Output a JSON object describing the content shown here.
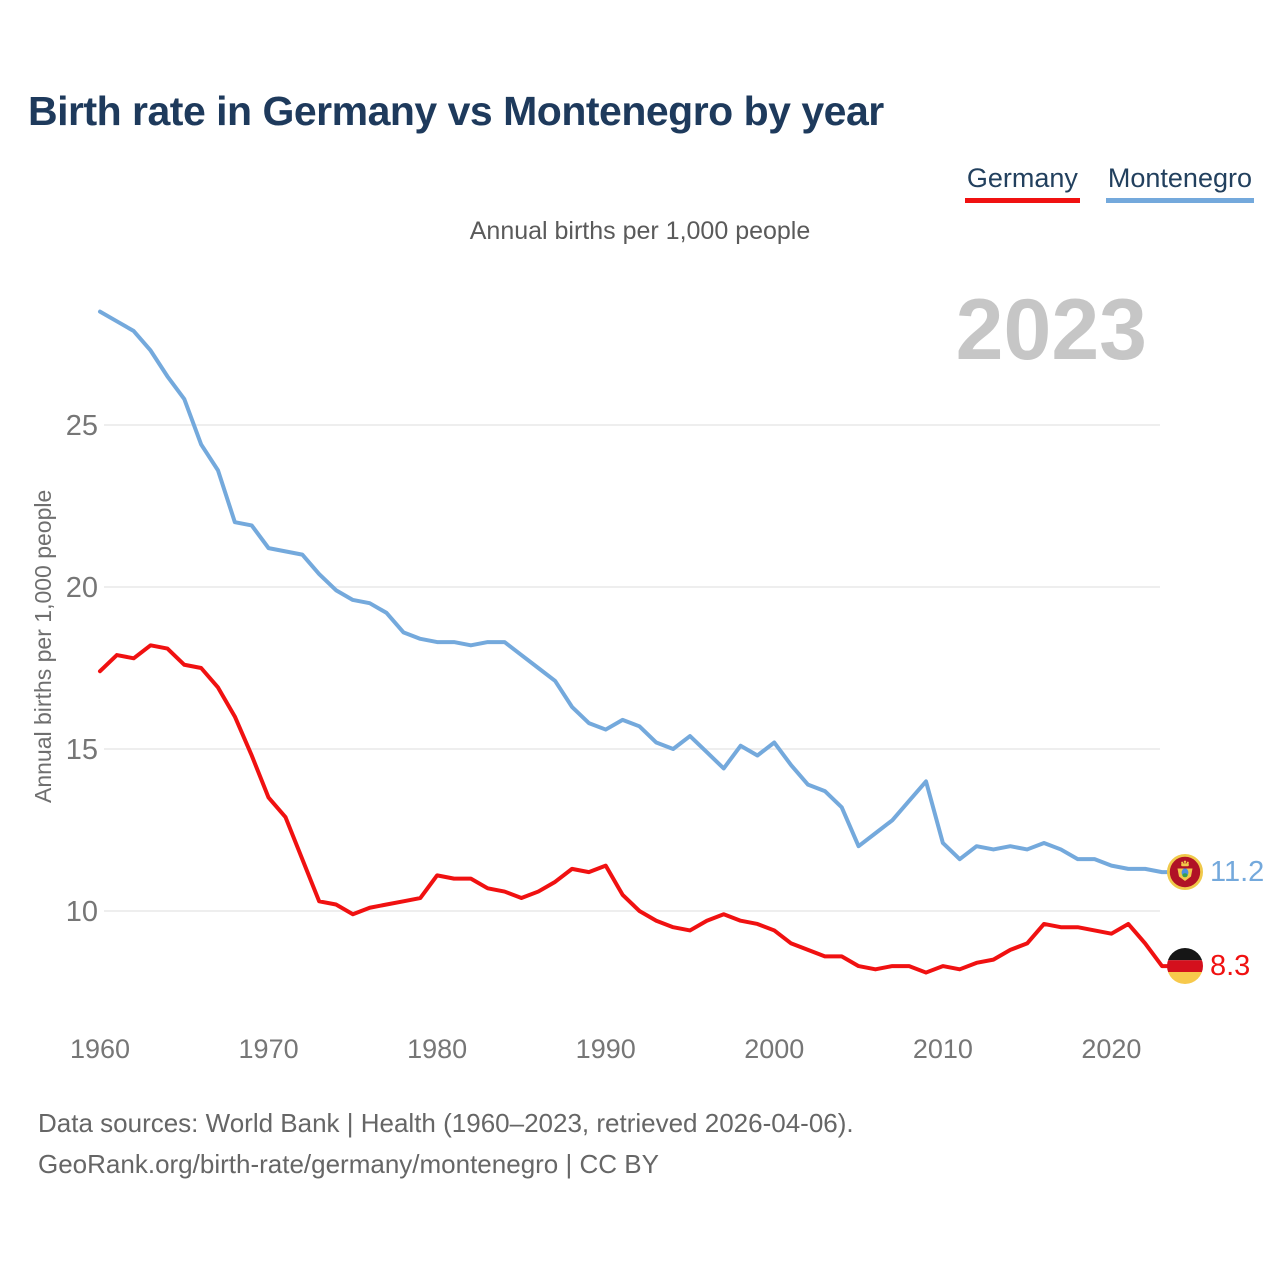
{
  "header": {
    "title": "Birth rate in Germany vs Montenegro by year",
    "subtitle": "Annual births per 1,000 people"
  },
  "legend": {
    "items": [
      {
        "label": "Germany",
        "color": "#f01111"
      },
      {
        "label": "Montenegro",
        "color": "#74a9dc"
      }
    ]
  },
  "watermark": {
    "year": "2023"
  },
  "axes": {
    "y_title": "Annual births per 1,000 people"
  },
  "end_labels": {
    "montenegro": "11.2",
    "germany": "8.3"
  },
  "footer": {
    "line1": "Data sources: World Bank | Health (1960–2023, retrieved 2026-04-06).",
    "line2": "GeoRank.org/birth-rate/germany/montenegro | CC BY"
  },
  "chart_data": {
    "type": "line",
    "title": "Birth rate in Germany vs Montenegro by year",
    "subtitle": "Annual births per 1,000 people",
    "xlabel": "",
    "ylabel": "Annual births per 1,000 people",
    "grid": "horizontal",
    "legend_position": "top-right",
    "xlim": [
      1960,
      2023
    ],
    "ylim": [
      7,
      29.5
    ],
    "x_ticks": [
      1960,
      1970,
      1980,
      1990,
      2000,
      2010,
      2020
    ],
    "y_ticks": [
      10,
      15,
      20,
      25
    ],
    "years": [
      1960,
      1961,
      1962,
      1963,
      1964,
      1965,
      1966,
      1967,
      1968,
      1969,
      1970,
      1971,
      1972,
      1973,
      1974,
      1975,
      1976,
      1977,
      1978,
      1979,
      1980,
      1981,
      1982,
      1983,
      1984,
      1985,
      1986,
      1987,
      1988,
      1989,
      1990,
      1991,
      1992,
      1993,
      1994,
      1995,
      1996,
      1997,
      1998,
      1999,
      2000,
      2001,
      2002,
      2003,
      2004,
      2005,
      2006,
      2007,
      2008,
      2009,
      2010,
      2011,
      2012,
      2013,
      2014,
      2015,
      2016,
      2017,
      2018,
      2019,
      2020,
      2021,
      2022,
      2023
    ],
    "series": [
      {
        "name": "Germany",
        "color": "#f01111",
        "end_value_label": "8.3",
        "values": [
          17.4,
          17.9,
          17.8,
          18.2,
          18.1,
          17.6,
          17.5,
          16.9,
          16.0,
          14.8,
          13.5,
          12.9,
          11.6,
          10.3,
          10.2,
          9.9,
          10.1,
          10.2,
          10.3,
          10.4,
          11.1,
          11.0,
          11.0,
          10.7,
          10.6,
          10.4,
          10.6,
          10.9,
          11.3,
          11.2,
          11.4,
          10.5,
          10.0,
          9.7,
          9.5,
          9.4,
          9.7,
          9.9,
          9.7,
          9.6,
          9.4,
          9.0,
          8.8,
          8.6,
          8.6,
          8.3,
          8.2,
          8.3,
          8.3,
          8.1,
          8.3,
          8.2,
          8.4,
          8.5,
          8.8,
          9.0,
          9.6,
          9.5,
          9.5,
          9.4,
          9.3,
          9.6,
          9.0,
          8.3
        ]
      },
      {
        "name": "Montenegro",
        "color": "#74a9dc",
        "end_value_label": "11.2",
        "values": [
          28.5,
          28.2,
          27.9,
          27.3,
          26.5,
          25.8,
          24.4,
          23.6,
          22.0,
          21.9,
          21.2,
          21.1,
          21.0,
          20.4,
          19.9,
          19.6,
          19.5,
          19.2,
          18.6,
          18.4,
          18.3,
          18.3,
          18.2,
          18.3,
          18.3,
          17.9,
          17.5,
          17.1,
          16.3,
          15.8,
          15.6,
          15.9,
          15.7,
          15.2,
          15.0,
          15.4,
          14.9,
          14.4,
          15.1,
          14.8,
          15.2,
          14.5,
          13.9,
          13.7,
          13.2,
          12.0,
          12.4,
          12.8,
          13.4,
          14.0,
          12.1,
          11.6,
          12.0,
          11.9,
          12.0,
          11.9,
          12.1,
          11.9,
          11.6,
          11.6,
          11.4,
          11.3,
          11.3,
          11.2
        ]
      }
    ]
  }
}
